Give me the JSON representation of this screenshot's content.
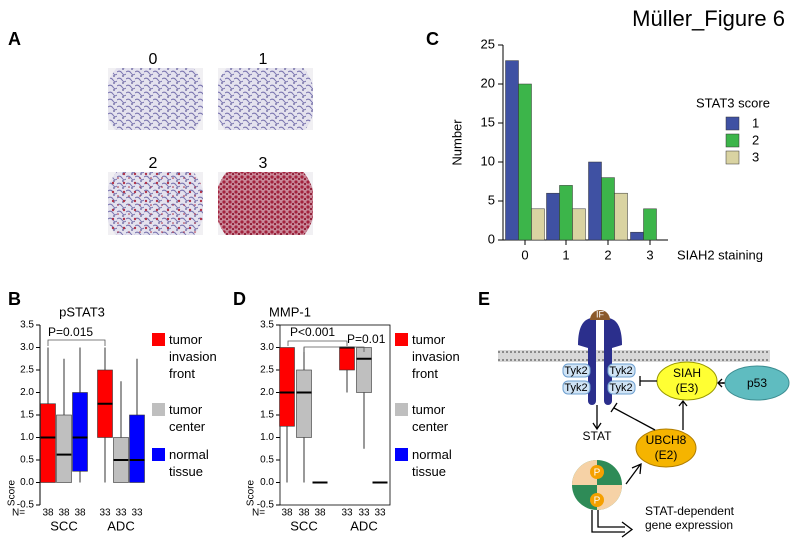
{
  "figure_title": "Müller_Figure 6",
  "panel_a": {
    "label": "A",
    "scores": [
      "0",
      "1",
      "2",
      "3"
    ]
  },
  "panel_e": {
    "label": "E",
    "ligand": "IF",
    "kinases": [
      "Tyk2",
      "Tyk2",
      "Tyk2",
      "Tyk2"
    ],
    "siah": [
      "SIAH",
      "(E3)"
    ],
    "p53": "p53",
    "ubch8": [
      "UBCH8",
      "(E2)"
    ],
    "stat": "STAT",
    "phospho": [
      "P",
      "P"
    ],
    "output": [
      "STAT-dependent",
      "gene expression"
    ]
  },
  "chart_data": [
    {
      "type": "bar",
      "label": "C",
      "xlabel": "SIAH2 staining",
      "ylabel": "Number",
      "legend_title": "STAT3 score",
      "categories": [
        "0",
        "1",
        "2",
        "3"
      ],
      "series": [
        {
          "name": "1",
          "color": "#3f51a3",
          "values": [
            23,
            6,
            10,
            1
          ]
        },
        {
          "name": "2",
          "color": "#3cb54a",
          "values": [
            20,
            7,
            8,
            4
          ]
        },
        {
          "name": "3",
          "color": "#d9d3a2",
          "values": [
            4,
            4,
            6,
            0
          ]
        }
      ],
      "ylim": [
        0,
        25
      ],
      "yticks": [
        0,
        5,
        10,
        15,
        20,
        25
      ]
    },
    {
      "type": "box",
      "label": "B",
      "title": "pSTAT3",
      "ylabel": "Score",
      "n_label": "N=",
      "categories": [
        "SCC",
        "ADC"
      ],
      "series": [
        {
          "name": "tumor invasion front",
          "color": "#ff0000",
          "n": [
            38,
            33
          ],
          "values": [
            {
              "low": 0,
              "q1": 0,
              "median": 1.0,
              "q3": 1.75,
              "high": 3.0
            },
            {
              "low": 0,
              "q1": 1.0,
              "median": 1.75,
              "q3": 2.5,
              "high": 3.0
            }
          ]
        },
        {
          "name": "tumor center",
          "color": "#bfbfbf",
          "n": [
            38,
            33
          ],
          "values": [
            {
              "low": 0,
              "q1": 0,
              "median": 0.62,
              "q3": 1.5,
              "high": 2.75
            },
            {
              "low": 0,
              "q1": 0,
              "median": 0.5,
              "q3": 1.0,
              "high": 2.25
            }
          ]
        },
        {
          "name": "normal tissue",
          "color": "#0000ff",
          "n": [
            38,
            33
          ],
          "values": [
            {
              "low": 0,
              "q1": 0.25,
              "median": 1.0,
              "q3": 2.0,
              "high": 3.0
            },
            {
              "low": 0,
              "q1": 0,
              "median": 0.5,
              "q3": 1.5,
              "high": 2.75
            }
          ]
        }
      ],
      "annotations": [
        "P=0.015"
      ],
      "ylim": [
        -0.5,
        3.5
      ],
      "yticks": [
        -0.5,
        {
          "value": 0,
          "label": "0.0"
        },
        0.5,
        {
          "value": 1,
          "label": "1.0"
        },
        1.5,
        {
          "value": 2,
          "label": "2.0"
        },
        2.5,
        {
          "value": 3,
          "label": "3.0"
        },
        3.5
      ]
    },
    {
      "type": "box",
      "label": "D",
      "title": "MMP-1",
      "ylabel": "Score",
      "n_label": "N=",
      "categories": [
        "SCC",
        "ADC"
      ],
      "series": [
        {
          "name": "tumor invasion front",
          "color": "#ff0000",
          "n": [
            38,
            33
          ],
          "values": [
            {
              "low": 0,
              "q1": 1.25,
              "median": 2.0,
              "q3": 3.0,
              "high": 3.0
            },
            {
              "low": 2.0,
              "q1": 2.5,
              "median": 3.0,
              "q3": 3.0,
              "high": 3.0
            }
          ]
        },
        {
          "name": "tumor center",
          "color": "#bfbfbf",
          "n": [
            38,
            33
          ],
          "values": [
            {
              "low": 0,
              "q1": 1.0,
              "median": 2.0,
              "q3": 2.5,
              "high": 3.0
            },
            {
              "low": 0.75,
              "q1": 2.0,
              "median": 2.75,
              "q3": 3.0,
              "high": 3.0
            }
          ]
        },
        {
          "name": "normal tissue",
          "color": "#0000ff",
          "n": [
            38,
            33
          ],
          "values": [
            {
              "low": 0,
              "q1": 0,
              "median": 0,
              "q3": 0,
              "high": 0
            },
            {
              "low": 0,
              "q1": 0,
              "median": 0,
              "q3": 0,
              "high": 0
            }
          ]
        }
      ],
      "annotations": [
        "P<0.001",
        "P=0.01"
      ],
      "ylim": [
        -0.5,
        3.5
      ],
      "yticks": [
        -0.5,
        {
          "value": 0,
          "label": "0.0"
        },
        0.5,
        {
          "value": 1,
          "label": "1.0"
        },
        1.5,
        {
          "value": 2,
          "label": "2.0"
        },
        2.5,
        {
          "value": 3,
          "label": "3.0"
        },
        3.5
      ]
    }
  ]
}
